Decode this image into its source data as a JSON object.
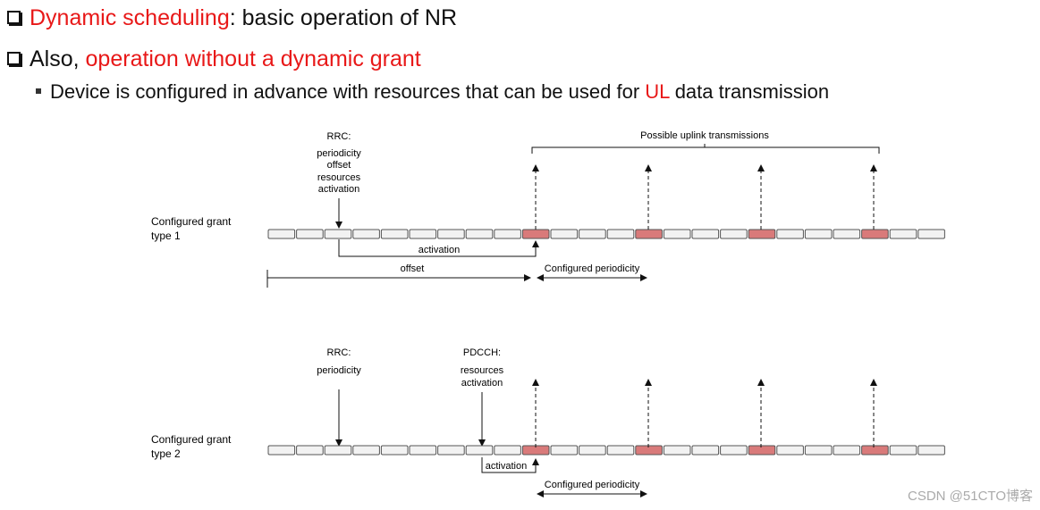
{
  "bullets": [
    {
      "highlight": "Dynamic scheduling",
      "rest": ": basic operation of NR"
    },
    {
      "prefix": "Also, ",
      "highlight": "operation without a dynamic grant"
    }
  ],
  "sub_bullet": {
    "before": "Device is configured in advance with resources that can be used for ",
    "highlight": "UL",
    "after": " data transmission"
  },
  "diagram": {
    "type1": {
      "label_line1": "Configured grant",
      "label_line2": "type 1",
      "rrc": "RRC:",
      "rrc_params": [
        "periodicity",
        "offset",
        "resources",
        "activation"
      ],
      "possible_tx": "Possible uplink transmissions",
      "activation": "activation",
      "offset": "offset",
      "periodicity": "Configured periodicity"
    },
    "type2": {
      "label_line1": "Configured grant",
      "label_line2": "type 2",
      "rrc": "RRC:",
      "rrc_params": [
        "periodicity"
      ],
      "pdcch": "PDCCH:",
      "pdcch_params": [
        "resources",
        "activation"
      ],
      "activation": "activation",
      "periodicity": "Configured periodicity"
    },
    "slot_count": 24,
    "highlighted_slots": [
      9,
      13,
      17,
      21
    ],
    "colors": {
      "slot_fill": "#f2f2f2",
      "slot_highlight": "#d97a7a",
      "stroke": "#555555"
    }
  },
  "watermark": "CSDN @51CTO博客"
}
